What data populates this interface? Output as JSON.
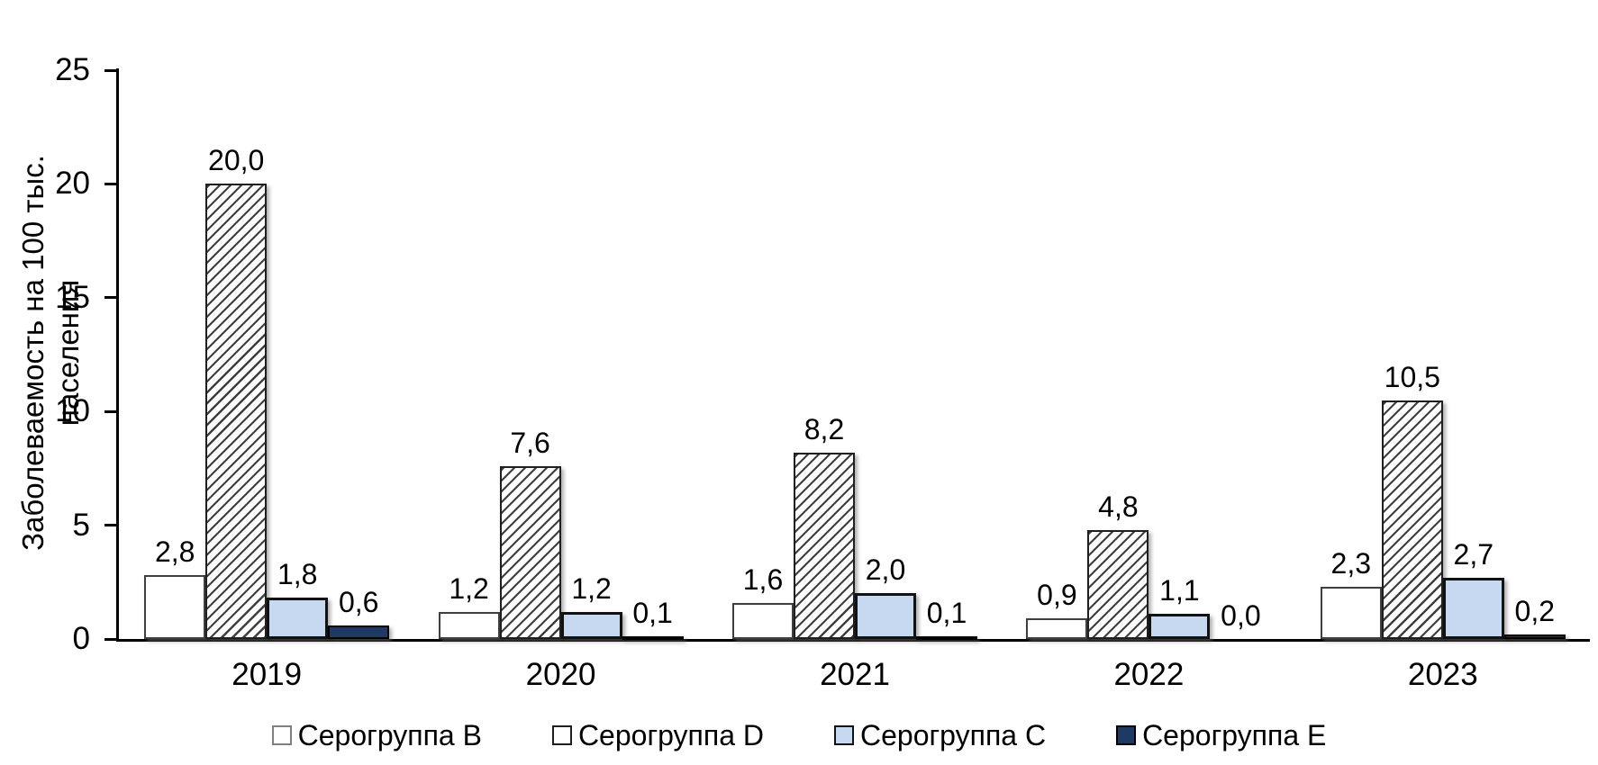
{
  "chart_data": {
    "type": "bar",
    "title": "",
    "ylabel": "Заболеваемость на 100 тыс. населения",
    "ylabel_lines": [
      "Заболеваемость на 100 тыс.",
      "населения"
    ],
    "xlabel": "",
    "categories": [
      "2019",
      "2020",
      "2021",
      "2022",
      "2023"
    ],
    "series": [
      {
        "name": "Серогруппа B",
        "fill": "#FFFFFF",
        "pattern": "none",
        "values": [
          2.8,
          1.2,
          1.6,
          0.9,
          2.3
        ],
        "labels": [
          "2,8",
          "1,2",
          "1,6",
          "0,9",
          "2,3"
        ]
      },
      {
        "name": "Серогруппа D",
        "fill": "#FFFFFF",
        "pattern": "diagonal-hatch",
        "values": [
          20.0,
          7.6,
          8.2,
          4.8,
          10.5
        ],
        "labels": [
          "20,0",
          "7,6",
          "8,2",
          "4,8",
          "10,5"
        ]
      },
      {
        "name": "Серогруппа C",
        "fill": "#C6D9F0",
        "pattern": "none",
        "values": [
          1.8,
          1.2,
          2.0,
          1.1,
          2.7
        ],
        "labels": [
          "1,8",
          "1,2",
          "2,0",
          "1,1",
          "2,7"
        ]
      },
      {
        "name": "Серогруппа E",
        "fill": "#203864",
        "pattern": "none",
        "values": [
          0.6,
          0.1,
          0.1,
          0.0,
          0.2
        ],
        "labels": [
          "0,6",
          "0,1",
          "0,1",
          "0,0",
          "0,2"
        ]
      }
    ],
    "ylim": [
      0,
      25
    ],
    "yticks": [
      0,
      5,
      10,
      15,
      20,
      25
    ],
    "grid": false,
    "legend_position": "bottom",
    "decimal_separator": ",",
    "colors": {
      "axis": "#000000",
      "hatch_line": "#3F3F3F",
      "light_blue": "#C6D9F0",
      "navy": "#203864",
      "background": "#FFFFFF"
    }
  }
}
